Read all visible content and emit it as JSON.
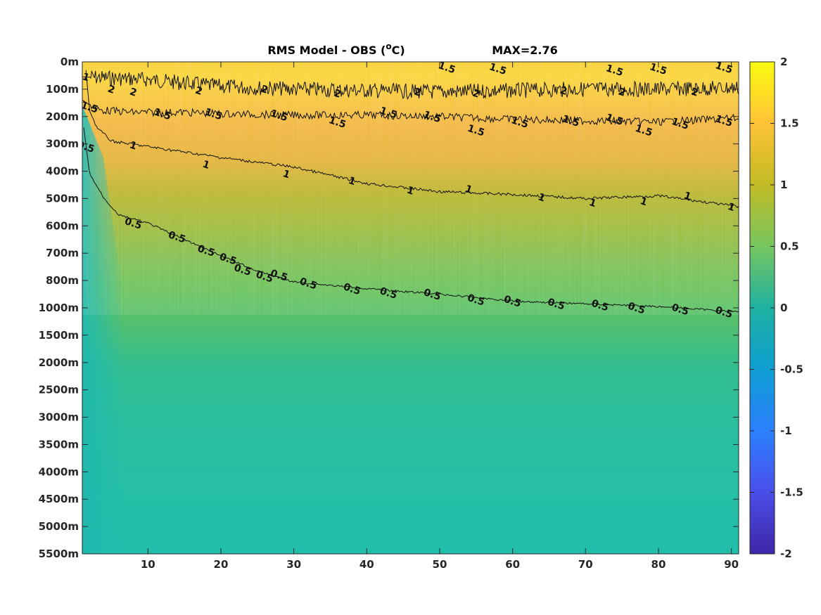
{
  "chart_data": {
    "type": "heatmap",
    "title": "RMS Model - OBS (",
    "title_superscript": "o",
    "title_unit": "C)",
    "annotation": "MAX=2.76",
    "x_range": [
      1,
      91
    ],
    "x_ticks": [
      "10",
      "20",
      "30",
      "40",
      "50",
      "60",
      "70",
      "80",
      "90"
    ],
    "x_tick_values": [
      10,
      20,
      30,
      40,
      50,
      60,
      70,
      80,
      90
    ],
    "y_ticks": [
      "0m",
      "100m",
      "200m",
      "300m",
      "400m",
      "500m",
      "600m",
      "700m",
      "800m",
      "1000m",
      "1500m",
      "2000m",
      "2500m",
      "3000m",
      "3500m",
      "4000m",
      "4500m",
      "5000m",
      "5500m"
    ],
    "colorbar": {
      "range": [
        -2,
        2
      ],
      "ticks": [
        "2",
        "1.5",
        "1",
        "0.5",
        "0",
        "-0.5",
        "-1",
        "-1.5",
        "-2"
      ],
      "tick_values": [
        2,
        1.5,
        1,
        0.5,
        0,
        -0.5,
        -1,
        -1.5,
        -2
      ],
      "colormap": "parula"
    },
    "contour_levels": [
      0.5,
      1,
      1.5,
      2
    ],
    "contours": [
      {
        "level": "2",
        "depth_index": [
          [
            1,
            0.55
          ],
          [
            10,
            0.65
          ],
          [
            20,
            0.9
          ],
          [
            30,
            1.0
          ],
          [
            40,
            1.05
          ],
          [
            50,
            1.1
          ],
          [
            60,
            1.05
          ],
          [
            70,
            1.0
          ],
          [
            80,
            1.0
          ],
          [
            91,
            0.95
          ]
        ]
      },
      {
        "level": "1.5",
        "depth_index": [
          [
            1,
            1.4
          ],
          [
            3,
            1.75
          ],
          [
            8,
            1.85
          ],
          [
            15,
            1.85
          ],
          [
            20,
            1.9
          ],
          [
            30,
            1.95
          ],
          [
            40,
            1.95
          ],
          [
            50,
            2.0
          ],
          [
            60,
            2.1
          ],
          [
            70,
            2.15
          ],
          [
            80,
            2.2
          ],
          [
            91,
            2.05
          ]
        ]
      },
      {
        "level": "1",
        "depth_index": [
          [
            1.5,
            0.3
          ],
          [
            2,
            1.8
          ],
          [
            3,
            2.4
          ],
          [
            5,
            2.9
          ],
          [
            10,
            3.1
          ],
          [
            15,
            3.3
          ],
          [
            20,
            3.5
          ],
          [
            30,
            3.85
          ],
          [
            40,
            4.45
          ],
          [
            50,
            4.75
          ],
          [
            60,
            4.85
          ],
          [
            70,
            5.0
          ],
          [
            80,
            4.9
          ],
          [
            91,
            5.3
          ]
        ]
      },
      {
        "level": "0.5",
        "depth_index": [
          [
            1.2,
            2.4
          ],
          [
            2,
            4.1
          ],
          [
            4,
            5.0
          ],
          [
            6,
            5.6
          ],
          [
            10,
            5.9
          ],
          [
            15,
            6.5
          ],
          [
            20,
            7.1
          ],
          [
            25,
            7.65
          ],
          [
            30,
            8.05
          ],
          [
            40,
            8.3
          ],
          [
            50,
            8.5
          ],
          [
            60,
            8.75
          ],
          [
            70,
            8.85
          ],
          [
            80,
            8.95
          ],
          [
            91,
            9.15
          ]
        ]
      }
    ],
    "contour_labels": [
      {
        "text": "1.5",
        "x": 51,
        "d": 0.2
      },
      {
        "text": "1.5",
        "x": 58,
        "d": 0.25
      },
      {
        "text": "1.5",
        "x": 74,
        "d": 0.3
      },
      {
        "text": "1.5",
        "x": 80,
        "d": 0.25
      },
      {
        "text": "1.5",
        "x": 89,
        "d": 0.2
      },
      {
        "text": "2",
        "x": 5,
        "d": 1.0
      },
      {
        "text": "2",
        "x": 8,
        "d": 1.1
      },
      {
        "text": "2",
        "x": 17,
        "d": 1.05
      },
      {
        "text": "2",
        "x": 26,
        "d": 1.0
      },
      {
        "text": "2",
        "x": 36,
        "d": 1.15
      },
      {
        "text": "2",
        "x": 47,
        "d": 1.1
      },
      {
        "text": "2",
        "x": 55,
        "d": 1.15
      },
      {
        "text": "2",
        "x": 67,
        "d": 1.05
      },
      {
        "text": "2",
        "x": 75,
        "d": 1.1
      },
      {
        "text": "2",
        "x": 85,
        "d": 1.1
      },
      {
        "text": "1.5",
        "x": 2,
        "d": 1.65
      },
      {
        "text": "1.5",
        "x": 12,
        "d": 1.9
      },
      {
        "text": "1.5",
        "x": 19,
        "d": 1.9
      },
      {
        "text": "1.5",
        "x": 28,
        "d": 1.95
      },
      {
        "text": "1.5",
        "x": 36,
        "d": 2.2
      },
      {
        "text": "1.5",
        "x": 43,
        "d": 1.85
      },
      {
        "text": "1.5",
        "x": 49,
        "d": 2.0
      },
      {
        "text": "1.5",
        "x": 55,
        "d": 2.5
      },
      {
        "text": "1.5",
        "x": 61,
        "d": 2.2
      },
      {
        "text": "1.5",
        "x": 68,
        "d": 2.15
      },
      {
        "text": "1.5",
        "x": 74,
        "d": 2.1
      },
      {
        "text": "1.5",
        "x": 78,
        "d": 2.5
      },
      {
        "text": "1.5",
        "x": 83,
        "d": 2.25
      },
      {
        "text": "1.5",
        "x": 89,
        "d": 2.15
      },
      {
        "text": "1",
        "x": 1.5,
        "d": 0.55
      },
      {
        "text": "1",
        "x": 8,
        "d": 3.05
      },
      {
        "text": "1",
        "x": 18,
        "d": 3.75
      },
      {
        "text": "1",
        "x": 29,
        "d": 4.1
      },
      {
        "text": "1",
        "x": 38,
        "d": 4.35
      },
      {
        "text": "1",
        "x": 46,
        "d": 4.7
      },
      {
        "text": "1",
        "x": 54,
        "d": 4.65
      },
      {
        "text": "1",
        "x": 64,
        "d": 4.95
      },
      {
        "text": "1",
        "x": 71,
        "d": 5.15
      },
      {
        "text": "1",
        "x": 78,
        "d": 5.1
      },
      {
        "text": "1",
        "x": 84,
        "d": 4.9
      },
      {
        "text": "1",
        "x": 90,
        "d": 5.3
      },
      {
        "text": "0.5",
        "x": 1.5,
        "d": 3.1
      },
      {
        "text": "0.5",
        "x": 8,
        "d": 5.9
      },
      {
        "text": "0.5",
        "x": 14,
        "d": 6.4
      },
      {
        "text": "0.5",
        "x": 18,
        "d": 6.9
      },
      {
        "text": "0.5",
        "x": 21,
        "d": 7.2
      },
      {
        "text": "0.5",
        "x": 23,
        "d": 7.6
      },
      {
        "text": "0.5",
        "x": 26,
        "d": 7.85
      },
      {
        "text": "0.5",
        "x": 28,
        "d": 7.8
      },
      {
        "text": "0.5",
        "x": 32,
        "d": 8.1
      },
      {
        "text": "0.5",
        "x": 38,
        "d": 8.3
      },
      {
        "text": "0.5",
        "x": 43,
        "d": 8.45
      },
      {
        "text": "0.5",
        "x": 49,
        "d": 8.5
      },
      {
        "text": "0.5",
        "x": 55,
        "d": 8.7
      },
      {
        "text": "0.5",
        "x": 60,
        "d": 8.75
      },
      {
        "text": "0.5",
        "x": 66,
        "d": 8.85
      },
      {
        "text": "0.5",
        "x": 72,
        "d": 8.9
      },
      {
        "text": "0.5",
        "x": 77,
        "d": 9.0
      },
      {
        "text": "0.5",
        "x": 83,
        "d": 9.05
      },
      {
        "text": "0.5",
        "x": 89,
        "d": 9.15
      }
    ]
  }
}
